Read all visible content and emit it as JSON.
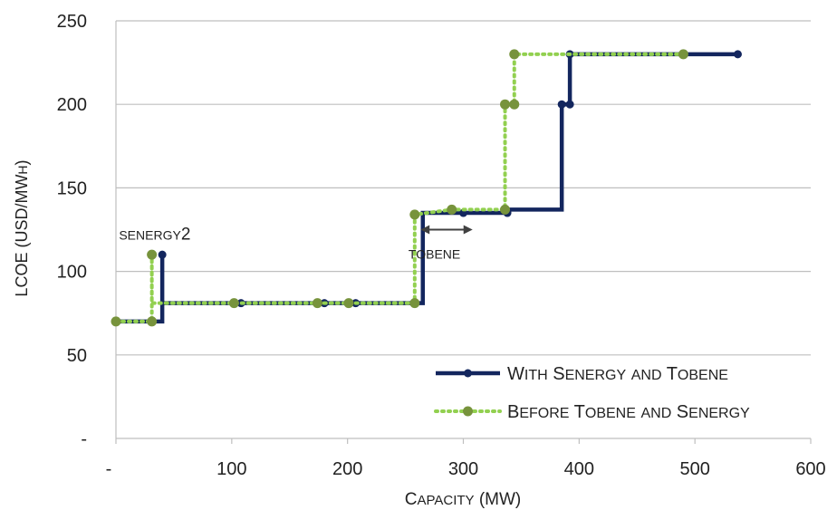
{
  "chart_data": {
    "type": "line",
    "title": "",
    "xlabel": "Capacity (MW)",
    "ylabel": "LCOE (USD/MWh)",
    "xlim": [
      0,
      600
    ],
    "ylim": [
      0,
      250
    ],
    "x_ticks": [
      0,
      100,
      200,
      300,
      400,
      500,
      600
    ],
    "x_tick_labels": [
      "-",
      "100",
      "200",
      "300",
      "400",
      "500",
      "600"
    ],
    "y_ticks": [
      0,
      50,
      100,
      150,
      200,
      250
    ],
    "y_tick_labels": [
      "-",
      "50",
      "100",
      "150",
      "200",
      "250"
    ],
    "grid": "horizontal",
    "legend_position": "bottom-right",
    "series": [
      {
        "name": "With Senergy and Tobene",
        "color": "#13265e",
        "style": "solid",
        "points": [
          [
            0,
            70
          ],
          [
            40,
            70
          ],
          [
            40,
            110
          ],
          [
            40,
            81
          ],
          [
            108,
            81
          ],
          [
            180,
            81
          ],
          [
            207,
            81
          ],
          [
            265,
            81
          ],
          [
            265,
            135
          ],
          [
            300,
            135
          ],
          [
            338,
            135
          ],
          [
            338,
            137
          ],
          [
            385,
            137
          ],
          [
            385,
            200
          ],
          [
            392,
            200
          ],
          [
            392,
            230
          ],
          [
            537,
            230
          ]
        ],
        "marker_indices": [
          0,
          2,
          4,
          5,
          6,
          9,
          10,
          13,
          14,
          15,
          16
        ]
      },
      {
        "name": "Before Tobene and Senergy",
        "color": "#92d050",
        "marker_color": "#77933c",
        "style": "dotted",
        "points": [
          [
            0,
            70
          ],
          [
            31,
            70
          ],
          [
            31,
            110
          ],
          [
            31,
            81
          ],
          [
            102,
            81
          ],
          [
            174,
            81
          ],
          [
            201,
            81
          ],
          [
            258,
            81
          ],
          [
            258,
            134
          ],
          [
            290,
            137
          ],
          [
            336,
            137
          ],
          [
            336,
            200
          ],
          [
            344,
            200
          ],
          [
            344,
            230
          ],
          [
            490,
            230
          ]
        ],
        "marker_indices": [
          0,
          1,
          2,
          4,
          5,
          6,
          7,
          8,
          9,
          10,
          11,
          12,
          13,
          14
        ]
      }
    ],
    "annotations": [
      {
        "text": "senergy2",
        "x": 30,
        "y": 118
      },
      {
        "text": "tobene",
        "x": 280,
        "y": 112,
        "arrow_from": 263,
        "arrow_to": 308,
        "arrow_y": 125
      }
    ]
  }
}
